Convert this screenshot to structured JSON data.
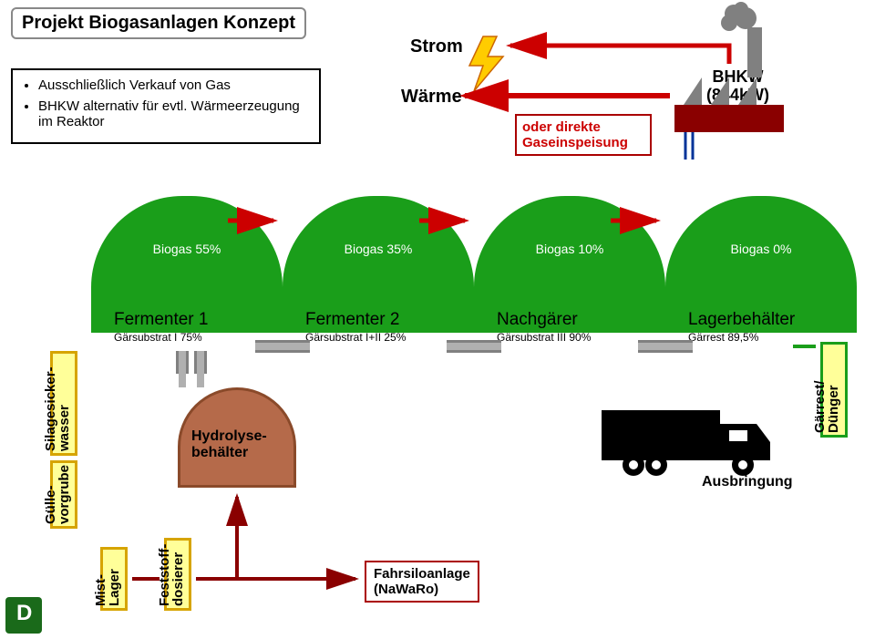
{
  "title": "Projekt Biogasanlagen Konzept",
  "stromLabel": "Strom",
  "warmeLabel": "Wärme",
  "bullets": [
    "Ausschließlich Verkauf von Gas",
    "BHKW alternativ für evtl. Wärmeerzeugung im Reaktor"
  ],
  "gasein": "oder direkte Gaseinspeisung",
  "bhkw": {
    "line1": "BHKW",
    "line2": "(844kW)"
  },
  "domes": [
    {
      "biogas": "Biogas 55%",
      "name": "Fermenter 1",
      "sub": "Gärsubstrat I 75%"
    },
    {
      "biogas": "Biogas 35%",
      "name": "Fermenter 2",
      "sub": "Gärsubstrat I+II 25%"
    },
    {
      "biogas": "Biogas 10%",
      "name": "Nachgärer",
      "sub": "Gärsubstrat III 90%"
    },
    {
      "biogas": "Biogas 0%",
      "name": "Lagerbehälter",
      "sub": "Gärrest  89,5%"
    }
  ],
  "hydro": "Hydrolyse-\nbehälter",
  "vSilage": "Silagesicker-\nwasser",
  "vGulle": "Gülle-\nvorgrube",
  "vGarrest": "Gärrest/\nDünger",
  "ausbringung": "Ausbringung",
  "mist": "Mist-\nLager",
  "fest": "Feststoff-\ndosierer",
  "fahr": "Fahrsiloanlage\n(NaWaRo)",
  "colors": {
    "dome": "#1a9e1a",
    "red": "#cc0000",
    "darkred": "#8a0000",
    "yellowFill": "#ffff99",
    "yellowBorder": "#d6a400",
    "hydroFill": "#b56a4a",
    "hydroBorder": "#8a4a2a",
    "plantGrey": "#808080",
    "plantBase": "#8a0000",
    "lightning": "#ffcc00"
  },
  "domePositions": [
    100,
    310,
    520,
    730
  ],
  "arrows": {
    "biogasArrowY": 242
  }
}
